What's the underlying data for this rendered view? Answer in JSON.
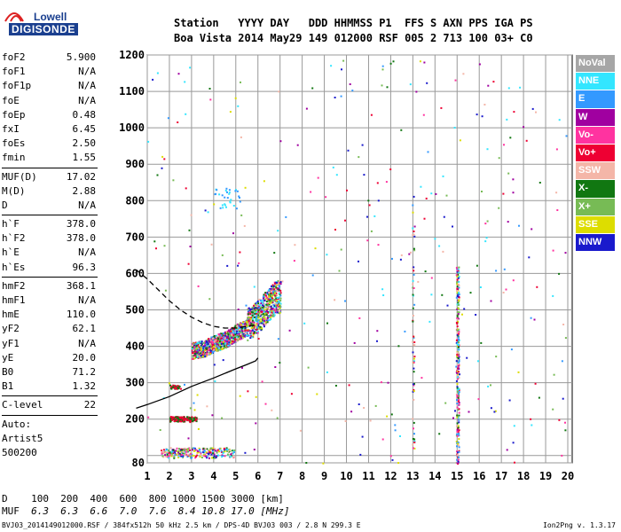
{
  "logo": {
    "line1": "Lowell",
    "line2": "DIGISONDE"
  },
  "header": {
    "labels": "Station   YYYY DAY   DDD HHMMSS P1  FFS S AXN PPS IGA PS",
    "values": "Boa Vista 2014 May29 149 012000 RSF 005 2 713 100 03+ C0"
  },
  "params_group1": [
    {
      "k": "foF2",
      "v": "5.900"
    },
    {
      "k": "foF1",
      "v": "N/A"
    },
    {
      "k": "foF1p",
      "v": "N/A"
    },
    {
      "k": "foE",
      "v": "N/A"
    },
    {
      "k": "foEp",
      "v": "0.48"
    },
    {
      "k": "fxI",
      "v": "6.45"
    },
    {
      "k": "foEs",
      "v": "2.50"
    },
    {
      "k": "fmin",
      "v": "1.55"
    }
  ],
  "params_group2": [
    {
      "k": "MUF(D)",
      "v": "17.02"
    },
    {
      "k": "M(D)",
      "v": "2.88"
    },
    {
      "k": "D",
      "v": "N/A"
    }
  ],
  "params_group3": [
    {
      "k": "h`F",
      "v": "378.0"
    },
    {
      "k": "h`F2",
      "v": "378.0"
    },
    {
      "k": "h`E",
      "v": "N/A"
    },
    {
      "k": "h`Es",
      "v": "96.3"
    }
  ],
  "params_group4": [
    {
      "k": "hmF2",
      "v": "368.1"
    },
    {
      "k": "hmF1",
      "v": "N/A"
    },
    {
      "k": "hmE",
      "v": "110.0"
    },
    {
      "k": "yF2",
      "v": "62.1"
    },
    {
      "k": "yF1",
      "v": "N/A"
    },
    {
      "k": "yE",
      "v": "20.0"
    },
    {
      "k": "B0",
      "v": "71.2"
    },
    {
      "k": "B1",
      "v": "1.32"
    }
  ],
  "params_group5": [
    {
      "k": "C-level",
      "v": "22"
    }
  ],
  "autoscaling": {
    "line1": "Auto:",
    "line2": "Artist5",
    "line3": "500200"
  },
  "legend": [
    {
      "label": "NoVal",
      "color": "#a6a6a6"
    },
    {
      "label": "NNE",
      "color": "#33e6ff"
    },
    {
      "label": "E",
      "color": "#3399ff"
    },
    {
      "label": "W",
      "color": "#a000a0"
    },
    {
      "label": "Vo-",
      "color": "#ff33a0"
    },
    {
      "label": "Vo+",
      "color": "#ee0033"
    },
    {
      "label": "SSW",
      "color": "#f4b6a8"
    },
    {
      "label": "X-",
      "color": "#117711"
    },
    {
      "label": "X+",
      "color": "#77bb55"
    },
    {
      "label": "SSE",
      "color": "#dddd00"
    },
    {
      "label": "NNW",
      "color": "#1a1acc"
    }
  ],
  "footer": {
    "d_label": "D",
    "d_values": "100  200  400  600  800 1000 1500 3000 [km]",
    "muf_label": "MUF",
    "muf_values": "6.3  6.3  6.6  7.0  7.6  8.4 10.8 17.0 [MHz]",
    "file_line": "BVJ03_2014149012000.RSF / 384fx512h 50 kHz 2.5 km / DPS-4D BVJ03 003 / 2.8 N 299.3 E",
    "version": "Ion2Png v. 1.3.17"
  },
  "chart_data": {
    "type": "scatter",
    "subtype": "ionogram",
    "x_ticks": [
      1,
      2,
      3,
      4,
      5,
      6,
      7,
      8,
      9,
      10,
      11,
      12,
      13,
      14,
      15,
      16,
      17,
      18,
      19,
      20
    ],
    "y_ticks": [
      80,
      100,
      200,
      300,
      400,
      500,
      600,
      700,
      800,
      900,
      1000,
      1100,
      1200
    ],
    "y_tick_labels": [
      "80",
      "",
      "200",
      "300",
      "400",
      "500",
      "600",
      "700",
      "800",
      "900",
      "1000",
      "1100",
      "1200"
    ],
    "xlim": [
      1,
      20
    ],
    "ylim": [
      80,
      1200
    ],
    "grid": true,
    "traces": {
      "o_trace_points": [
        [
          3.0,
          380
        ],
        [
          3.5,
          385
        ],
        [
          4.0,
          400
        ],
        [
          4.5,
          410
        ],
        [
          5.0,
          430
        ],
        [
          5.5,
          445
        ],
        [
          5.9,
          460
        ],
        [
          6.2,
          480
        ],
        [
          6.5,
          500
        ],
        [
          6.8,
          520
        ]
      ],
      "es_layer": [
        [
          2.0,
          200
        ],
        [
          2.5,
          202
        ],
        [
          3.0,
          205
        ]
      ],
      "e_layer": [
        [
          1.5,
          100
        ],
        [
          2.5,
          102
        ],
        [
          3.5,
          105
        ],
        [
          4.5,
          110
        ]
      ],
      "vertical_interference": {
        "frequency": 15.0,
        "height_range": [
          80,
          620
        ]
      }
    },
    "profile_solid": [
      [
        0.5,
        230
      ],
      [
        1.0,
        240
      ],
      [
        2.0,
        262
      ],
      [
        3.0,
        290
      ],
      [
        4.0,
        313
      ],
      [
        5.0,
        338
      ],
      [
        5.5,
        350
      ],
      [
        5.9,
        360
      ],
      [
        6.0,
        368
      ]
    ],
    "profile_dashed": [
      [
        0.5,
        610
      ],
      [
        1.0,
        585
      ],
      [
        1.5,
        555
      ],
      [
        2.0,
        525
      ],
      [
        2.5,
        500
      ],
      [
        3.0,
        480
      ],
      [
        3.5,
        465
      ],
      [
        4.0,
        455
      ],
      [
        4.5,
        450
      ],
      [
        5.0,
        450
      ],
      [
        5.5,
        455
      ],
      [
        6.0,
        460
      ]
    ]
  }
}
